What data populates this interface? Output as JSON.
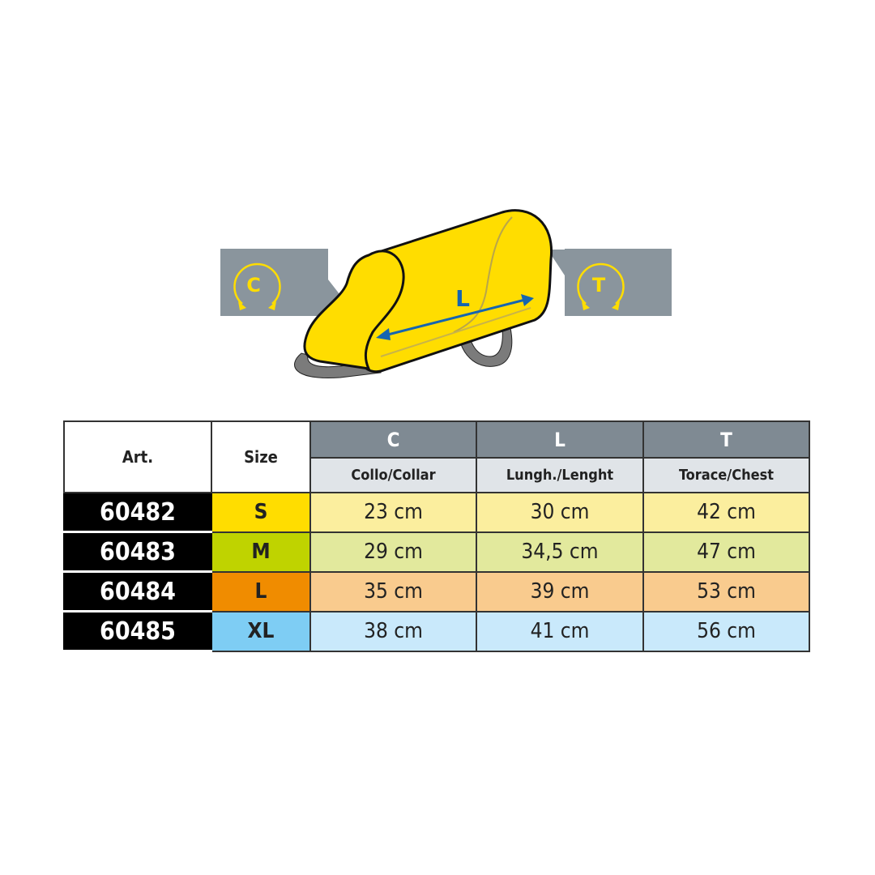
{
  "illustration": {
    "labels": {
      "collar": "C",
      "length": "L",
      "chest": "T"
    },
    "colors": {
      "coat": "#ffdd00",
      "label_box": "#8a959d",
      "arrow_blue": "#1565b0",
      "strap": "#7b7b7b"
    }
  },
  "table": {
    "headers": {
      "art": "Art.",
      "size": "Size"
    },
    "columns": [
      {
        "letter": "C",
        "label": "Collo/Collar"
      },
      {
        "letter": "L",
        "label": "Lungh./Lenght"
      },
      {
        "letter": "T",
        "label": "Torace/Chest"
      }
    ],
    "rows": [
      {
        "art": "60482",
        "size": "S",
        "values": [
          "23 cm",
          "30 cm",
          "42 cm"
        ],
        "size_color": "#ffdd00",
        "row_color": "#fbee9e"
      },
      {
        "art": "60483",
        "size": "M",
        "values": [
          "29 cm",
          "34,5 cm",
          "47 cm"
        ],
        "size_color": "#bfd300",
        "row_color": "#e2e99d"
      },
      {
        "art": "60484",
        "size": "L",
        "values": [
          "35 cm",
          "39 cm",
          "53 cm"
        ],
        "size_color": "#f08c00",
        "row_color": "#f9cb8e"
      },
      {
        "art": "60485",
        "size": "XL",
        "values": [
          "38 cm",
          "41 cm",
          "56 cm"
        ],
        "size_color": "#7ecdf4",
        "row_color": "#c9e9fb"
      }
    ]
  }
}
